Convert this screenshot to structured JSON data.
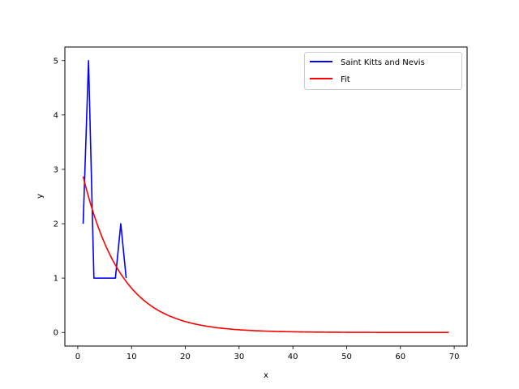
{
  "chart_data": {
    "type": "line",
    "title": "",
    "xlabel": "x",
    "ylabel": "y",
    "xlim": [
      -2.4,
      72.4
    ],
    "ylim": [
      -0.25,
      5.25
    ],
    "xticks": [
      0,
      10,
      20,
      30,
      40,
      50,
      60,
      70
    ],
    "yticks": [
      0,
      1,
      2,
      3,
      4,
      5
    ],
    "grid": false,
    "legend_position": "top-right",
    "series": [
      {
        "name": "Saint Kitts and Nevis",
        "color": "#0000ff",
        "x": [
          1,
          2,
          3,
          4,
          5,
          6,
          7,
          8,
          9
        ],
        "y": [
          2,
          5,
          1,
          1,
          1,
          1,
          1,
          2,
          1
        ]
      },
      {
        "name": "Fit",
        "color": "#ff0000",
        "model": "exponential",
        "a": 3.3,
        "b": 0.14,
        "x_range": [
          1,
          69
        ]
      }
    ]
  }
}
